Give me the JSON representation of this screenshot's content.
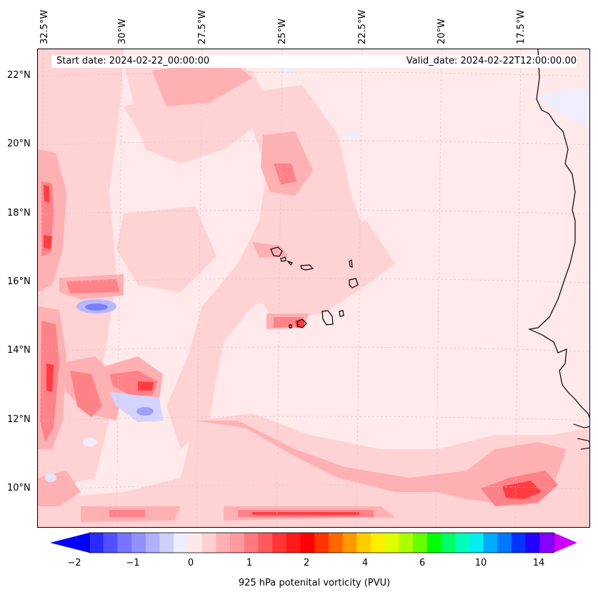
{
  "map": {
    "start_date": "Start date: 2024-02-22_00:00:00",
    "valid_date": "Valid_date: 2024-02-22T12:00:00.00",
    "lon_labels": [
      "32.5°W",
      "30°W",
      "27.5°W",
      "25°W",
      "22.5°W",
      "20°W",
      "17.5°W"
    ],
    "lat_labels": [
      "22°N",
      "20°N",
      "18°N",
      "16°N",
      "14°N",
      "12°N",
      "10°N"
    ],
    "variable": "925 hPa potential vorticity",
    "units": "PVU"
  },
  "colorbar": {
    "title": "925 hPa potenital vorticity (PVU)",
    "tick_labels": [
      "−2",
      "−1",
      "0",
      "1",
      "2",
      "4",
      "6",
      "10",
      "14"
    ],
    "extend": "both",
    "colors": [
      "#0000ff",
      "#2a2aff",
      "#5050ff",
      "#7575ff",
      "#9090ff",
      "#b0b0ff",
      "#d0d0ff",
      "#eeeeff",
      "#ffe9ea",
      "#ffd0d2",
      "#ffb0b3",
      "#ff9a9e",
      "#ff7a7e",
      "#ff5a5e",
      "#ff3535",
      "#ff1a1a",
      "#ff0000",
      "#ff3300",
      "#ff6600",
      "#ff9900",
      "#ffcc00",
      "#ffee00",
      "#ddff00",
      "#aaff00",
      "#66ff00",
      "#00ff00",
      "#00ff66",
      "#00ffbb",
      "#00eeee",
      "#00aaff",
      "#0077ff",
      "#0033ff",
      "#2200ff",
      "#8800ff",
      "#cc00ff"
    ]
  }
}
